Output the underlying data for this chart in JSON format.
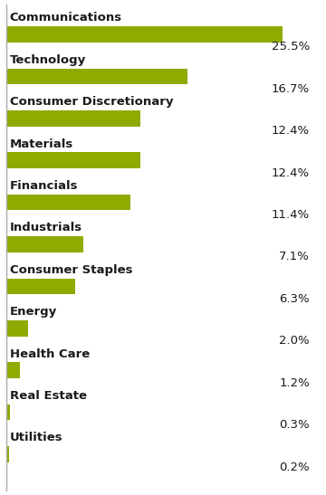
{
  "categories": [
    "Communications",
    "Technology",
    "Consumer Discretionary",
    "Materials",
    "Financials",
    "Industrials",
    "Consumer Staples",
    "Energy",
    "Health Care",
    "Real Estate",
    "Utilities"
  ],
  "values": [
    25.5,
    16.7,
    12.4,
    12.4,
    11.4,
    7.1,
    6.3,
    2.0,
    1.2,
    0.3,
    0.2
  ],
  "labels": [
    "25.5%",
    "16.7%",
    "12.4%",
    "12.4%",
    "11.4%",
    "7.1%",
    "6.3%",
    "2.0%",
    "1.2%",
    "0.3%",
    "0.2%"
  ],
  "bar_color": "#8faa00",
  "background_color": "#ffffff",
  "text_color": "#1a1a1a",
  "label_color": "#1a1a1a",
  "bar_height": 0.38,
  "xlim": [
    0,
    28
  ],
  "category_fontsize": 9.5,
  "label_fontsize": 9.5
}
